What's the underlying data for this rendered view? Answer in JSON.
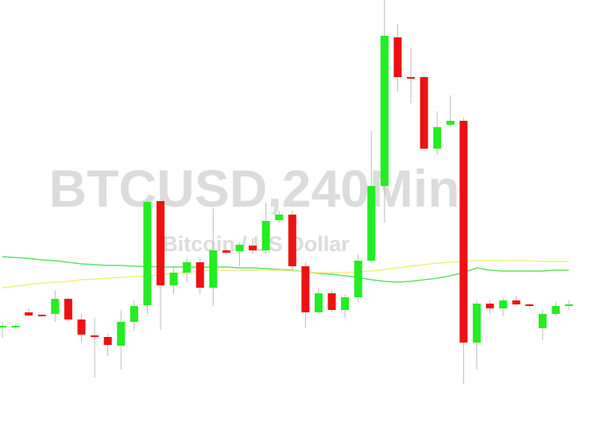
{
  "chart_data": {
    "type": "candlestick",
    "title": "BTCUSD,240Min",
    "subtitle": "Bitcoin / US Dollar",
    "up_color": "#22ee22",
    "down_color": "#ee1111",
    "wick_color": "#bbbbbb",
    "ylim": [
      0,
      536
    ],
    "open": [
      124,
      124,
      143,
      140,
      141,
      160,
      134,
      114,
      112,
      101,
      131,
      152,
      283,
      177,
      193,
      206,
      174,
      221,
      220,
      227,
      221,
      259,
      266,
      201,
      143,
      167,
      146,
      162,
      208,
      302,
      489,
      439,
      439,
      349,
      379,
      384,
      105,
      154,
      148,
      158,
      153,
      123,
      141,
      152
    ],
    "high": [
      131,
      128,
      148,
      141,
      171,
      162,
      141,
      136,
      116,
      146,
      158,
      284,
      286,
      201,
      211,
      211,
      274,
      223,
      231,
      236,
      281,
      271,
      271,
      206,
      174,
      171,
      166,
      216,
      371,
      536,
      506,
      476,
      441,
      396,
      416,
      388,
      158,
      158,
      161,
      164,
      154,
      146,
      156,
      158
    ],
    "low": [
      111,
      122,
      138,
      138,
      131,
      131,
      106,
      61,
      88,
      71,
      121,
      141,
      121,
      166,
      181,
      166,
      151,
      216,
      201,
      216,
      216,
      256,
      196,
      124,
      140,
      144,
      136,
      156,
      206,
      256,
      421,
      406,
      346,
      341,
      376,
      53,
      71,
      141,
      138,
      151,
      149,
      108,
      138,
      146
    ],
    "close": [
      126,
      126,
      139,
      139,
      160,
      134,
      115,
      112,
      102,
      131,
      151,
      282,
      177,
      193,
      206,
      174,
      221,
      218,
      228,
      221,
      258,
      266,
      201,
      143,
      167,
      146,
      162,
      208,
      302,
      491,
      439,
      437,
      349,
      376,
      384,
      105,
      154,
      148,
      158,
      153,
      151,
      141,
      151,
      153
    ],
    "series": [
      {
        "color": "#66dd66",
        "values": [
          213,
          212,
          211,
          209,
          208,
          206,
          204,
          203,
          202,
          202,
          201,
          201,
          200,
          200,
          200,
          200,
          200,
          200,
          199,
          199,
          198,
          197,
          196,
          194,
          192,
          191,
          189,
          187,
          184,
          182,
          181,
          182,
          184,
          186,
          189,
          193,
          199,
          196,
          195,
          195,
          195,
          195,
          196,
          196
        ]
      },
      {
        "color": "#f2ee80",
        "values": [
          174,
          176,
          178,
          180,
          181,
          182,
          184,
          185,
          186,
          187,
          188,
          189,
          190,
          192,
          193,
          195,
          196,
          196,
          196,
          196,
          196,
          196,
          195,
          194,
          193,
          193,
          193,
          194,
          195,
          197,
          199,
          201,
          203,
          205,
          206,
          207,
          208,
          208,
          208,
          208,
          208,
          207,
          207,
          207
        ]
      }
    ]
  }
}
